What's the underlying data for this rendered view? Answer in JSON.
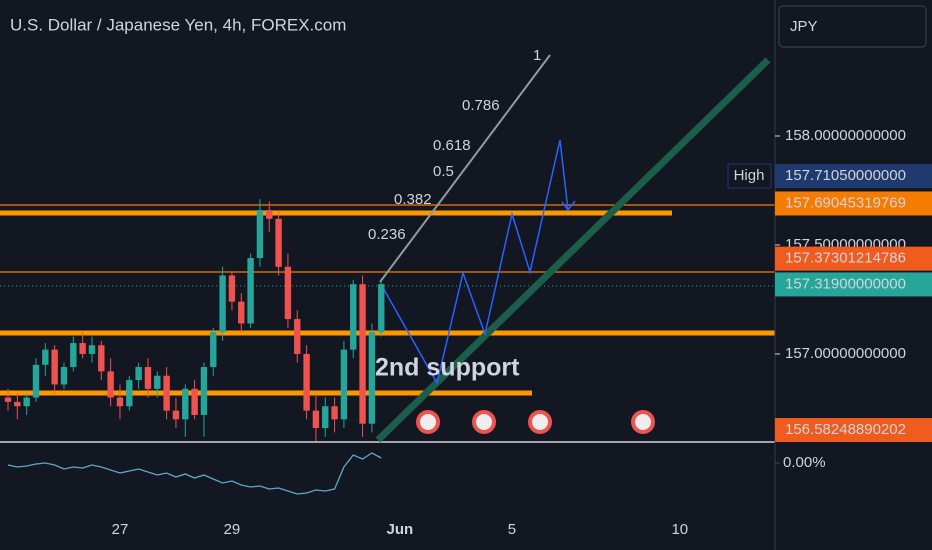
{
  "chart_data": {
    "type": "candlestick",
    "title": "U.S. Dollar / Japanese Yen, 4h, FOREX.com",
    "currency": "JPY",
    "up_color": "#26a69a",
    "down_color": "#ef5350",
    "xlim": [
      -0.857,
      82.2
    ],
    "ylim": [
      156.596,
      158.624
    ],
    "xticks": [
      {
        "value": 12,
        "label": "27"
      },
      {
        "value": 24,
        "label": "29"
      },
      {
        "value": 42,
        "label": "Jun"
      },
      {
        "value": 54,
        "label": "5"
      },
      {
        "value": 72,
        "label": "10"
      }
    ],
    "yticks": [
      {
        "value": 158,
        "label": "158.00000000000"
      },
      {
        "value": 157.5,
        "label": "157.50000000000"
      },
      {
        "value": 157,
        "label": "157.00000000000"
      }
    ],
    "open": [
      156.8,
      156.78,
      156.76,
      156.8,
      156.95,
      157.02,
      156.86,
      156.94,
      157.05,
      157.0,
      157.04,
      156.92,
      156.8,
      156.76,
      156.88,
      156.94,
      156.84,
      156.9,
      156.74,
      156.7,
      156.84,
      156.72,
      156.94,
      157.1,
      157.36,
      157.24,
      157.14,
      157.44,
      157.66,
      157.62,
      157.4,
      157.16,
      157.0,
      156.74,
      156.66,
      156.76,
      156.7,
      157.02,
      157.32,
      156.68,
      157.1
    ],
    "high": [
      156.84,
      156.82,
      156.82,
      156.98,
      157.05,
      157.04,
      156.96,
      157.08,
      157.1,
      157.08,
      157.06,
      156.98,
      156.86,
      156.9,
      156.96,
      156.98,
      156.92,
      156.94,
      156.8,
      156.86,
      156.88,
      156.96,
      157.12,
      157.4,
      157.38,
      157.28,
      157.46,
      157.71,
      157.7,
      157.66,
      157.46,
      157.2,
      157.04,
      156.82,
      156.8,
      156.8,
      157.06,
      157.34,
      157.36,
      157.14,
      157.34
    ],
    "low": [
      156.74,
      156.7,
      156.72,
      156.78,
      156.9,
      156.82,
      156.84,
      156.92,
      156.98,
      156.96,
      156.88,
      156.76,
      156.7,
      156.74,
      156.84,
      156.8,
      156.8,
      156.7,
      156.66,
      156.62,
      156.7,
      156.62,
      156.9,
      157.06,
      157.2,
      157.1,
      157.12,
      157.4,
      157.56,
      157.36,
      157.12,
      156.96,
      156.7,
      156.6,
      156.62,
      156.64,
      156.66,
      156.98,
      156.62,
      156.64,
      157.08
    ],
    "close": [
      156.78,
      156.76,
      156.8,
      156.95,
      157.02,
      156.86,
      156.94,
      157.05,
      157.0,
      157.04,
      156.92,
      156.8,
      156.76,
      156.88,
      156.94,
      156.84,
      156.9,
      156.74,
      156.7,
      156.84,
      156.72,
      156.94,
      157.1,
      157.36,
      157.24,
      157.14,
      157.44,
      157.66,
      157.62,
      157.4,
      157.16,
      157.0,
      156.74,
      156.66,
      156.76,
      156.7,
      157.02,
      157.32,
      156.68,
      157.1,
      157.32
    ],
    "oscillator": {
      "color": "#5fa8c9",
      "y2lim": [
        -1.85,
        0.9
      ],
      "y2ticks": [
        {
          "value": 0,
          "label": "0.00%"
        }
      ],
      "values": [
        -0.1,
        -0.2,
        -0.15,
        -0.05,
        0.0,
        -0.1,
        -0.3,
        -0.2,
        -0.25,
        -0.1,
        -0.2,
        -0.35,
        -0.5,
        -0.4,
        -0.3,
        -0.45,
        -0.6,
        -0.5,
        -0.7,
        -0.55,
        -0.75,
        -0.6,
        -0.8,
        -1.0,
        -0.9,
        -1.1,
        -1.2,
        -1.15,
        -1.3,
        -1.25,
        -1.4,
        -1.55,
        -1.5,
        -1.35,
        -1.4,
        -1.3,
        -0.2,
        0.4,
        0.2,
        0.5,
        0.25
      ]
    },
    "price_tags": [
      {
        "name": "High",
        "value": 157.7105,
        "label": "157.71050000000",
        "color": "#1e3a6e"
      },
      {
        "value": 157.69045319769,
        "label": "157.69045319769",
        "color": "#f57c00"
      },
      {
        "value": 157.37301214786,
        "label": "157.37301214786",
        "color": "#f05b1e"
      },
      {
        "value": 157.319,
        "label": "157.31900000000",
        "color": "#26a69a"
      },
      {
        "value": 156.58248890202,
        "label": "156.58248890202",
        "color": "#f05b1e"
      }
    ],
    "annotations": [
      {
        "text": "1",
        "color": "#9598a1"
      },
      {
        "text": "0.786",
        "color": "#26a69a"
      },
      {
        "text": "0.618",
        "color": "#26a69a"
      },
      {
        "text": "0.5",
        "color": "#26a69a"
      },
      {
        "text": "0.382",
        "color": "#f57c00"
      },
      {
        "text": "0.236",
        "color": "#ef5350"
      },
      {
        "text": "2nd support",
        "color": "#2962ff"
      }
    ]
  }
}
